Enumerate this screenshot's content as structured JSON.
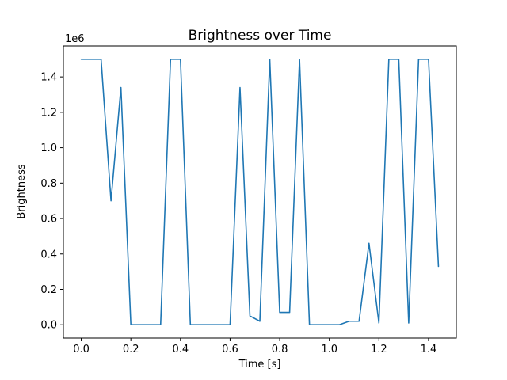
{
  "chart_data": {
    "type": "line",
    "title": "Brightness over Time",
    "xlabel": "Time [s]",
    "ylabel": "Brightness",
    "y_offset_text": "1e6",
    "line_color": "#1f77b4",
    "background_color": "#ffffff",
    "grid": false,
    "legend_position": "none",
    "xlim": [
      -0.072,
      1.512
    ],
    "ylim": [
      -75000,
      1575000
    ],
    "xticks": [
      {
        "value": 0.0,
        "label": "0.0"
      },
      {
        "value": 0.2,
        "label": "0.2"
      },
      {
        "value": 0.4,
        "label": "0.4"
      },
      {
        "value": 0.6,
        "label": "0.6"
      },
      {
        "value": 0.8,
        "label": "0.8"
      },
      {
        "value": 1.0,
        "label": "1.0"
      },
      {
        "value": 1.2,
        "label": "1.2"
      },
      {
        "value": 1.4,
        "label": "1.4"
      }
    ],
    "yticks": [
      {
        "value": 0,
        "label": "0.0"
      },
      {
        "value": 200000,
        "label": "0.2"
      },
      {
        "value": 400000,
        "label": "0.4"
      },
      {
        "value": 600000,
        "label": "0.6"
      },
      {
        "value": 800000,
        "label": "0.8"
      },
      {
        "value": 1000000,
        "label": "1.0"
      },
      {
        "value": 1200000,
        "label": "1.2"
      },
      {
        "value": 1400000,
        "label": "1.4"
      }
    ],
    "x": [
      0.0,
      0.04,
      0.08,
      0.12,
      0.16,
      0.2,
      0.24,
      0.28,
      0.32,
      0.36,
      0.4,
      0.44,
      0.48,
      0.52,
      0.56,
      0.6,
      0.64,
      0.68,
      0.72,
      0.76,
      0.8,
      0.84,
      0.88,
      0.92,
      0.96,
      1.0,
      1.04,
      1.08,
      1.12,
      1.16,
      1.2,
      1.24,
      1.28,
      1.32,
      1.36,
      1.4,
      1.44
    ],
    "series": [
      {
        "name": "brightness",
        "values": [
          1500000,
          1500000,
          1500000,
          700000,
          1340000,
          0,
          0,
          0,
          0,
          1500000,
          1500000,
          0,
          0,
          0,
          0,
          0,
          1340000,
          50000,
          20000,
          1500000,
          70000,
          70000,
          1500000,
          0,
          0,
          0,
          0,
          20000,
          20000,
          460000,
          10000,
          1500000,
          1500000,
          10000,
          1500000,
          1500000,
          330000
        ]
      }
    ]
  }
}
